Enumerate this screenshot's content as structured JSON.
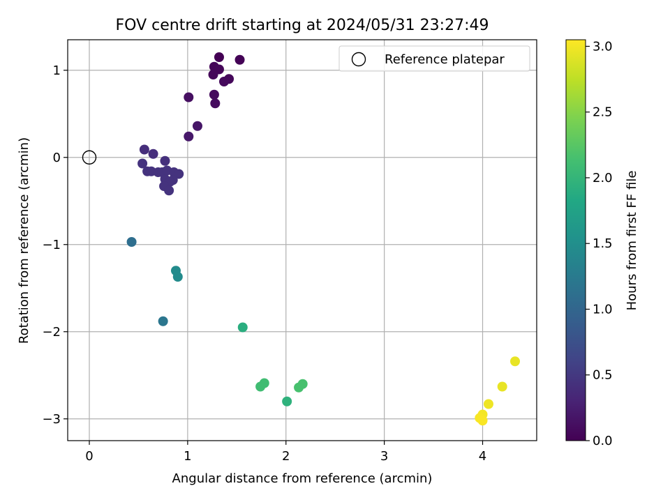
{
  "chart_data": {
    "type": "scatter",
    "title": "FOV centre drift starting at 2024/05/31 23:27:49",
    "xlabel": "Angular distance from reference (arcmin)",
    "ylabel": "Rotation from reference (arcmin)",
    "xlim": [
      -0.22,
      4.55
    ],
    "ylim": [
      -3.25,
      1.35
    ],
    "xticks": [
      0,
      1,
      2,
      3,
      4
    ],
    "yticks": [
      -3,
      -2,
      -1,
      0,
      1
    ],
    "grid": true,
    "legend": {
      "position": "upper right",
      "entries": [
        "Reference platepar"
      ]
    },
    "reference_point": {
      "x": 0,
      "y": 0
    },
    "colorbar": {
      "label": "Hours from first FF file",
      "colormap": "viridis",
      "range": [
        0.0,
        3.05
      ],
      "ticks": [
        "0.0",
        "0.5",
        "1.0",
        "1.5",
        "2.0",
        "2.5",
        "3.0"
      ]
    },
    "points": [
      {
        "x": 1.32,
        "y": 1.15,
        "c": 0.0
      },
      {
        "x": 1.53,
        "y": 1.12,
        "c": 0.02
      },
      {
        "x": 1.27,
        "y": 1.04,
        "c": 0.03
      },
      {
        "x": 1.32,
        "y": 1.01,
        "c": 0.04
      },
      {
        "x": 1.26,
        "y": 0.95,
        "c": 0.05
      },
      {
        "x": 1.42,
        "y": 0.9,
        "c": 0.06
      },
      {
        "x": 1.37,
        "y": 0.87,
        "c": 0.07
      },
      {
        "x": 1.27,
        "y": 0.72,
        "c": 0.08
      },
      {
        "x": 1.28,
        "y": 0.62,
        "c": 0.09
      },
      {
        "x": 1.01,
        "y": 0.69,
        "c": 0.12
      },
      {
        "x": 1.1,
        "y": 0.36,
        "c": 0.18
      },
      {
        "x": 1.01,
        "y": 0.24,
        "c": 0.2
      },
      {
        "x": 0.56,
        "y": 0.09,
        "c": 0.4
      },
      {
        "x": 0.65,
        "y": 0.04,
        "c": 0.4
      },
      {
        "x": 0.54,
        "y": -0.07,
        "c": 0.45
      },
      {
        "x": 0.77,
        "y": -0.04,
        "c": 0.42
      },
      {
        "x": 0.59,
        "y": -0.16,
        "c": 0.45
      },
      {
        "x": 0.63,
        "y": -0.16,
        "c": 0.45
      },
      {
        "x": 0.7,
        "y": -0.17,
        "c": 0.45
      },
      {
        "x": 0.74,
        "y": -0.17,
        "c": 0.45
      },
      {
        "x": 0.79,
        "y": -0.15,
        "c": 0.45
      },
      {
        "x": 0.86,
        "y": -0.17,
        "c": 0.45
      },
      {
        "x": 0.91,
        "y": -0.19,
        "c": 0.45
      },
      {
        "x": 0.77,
        "y": -0.25,
        "c": 0.45
      },
      {
        "x": 0.85,
        "y": -0.26,
        "c": 0.45
      },
      {
        "x": 0.82,
        "y": -0.28,
        "c": 0.45
      },
      {
        "x": 0.76,
        "y": -0.33,
        "c": 0.45
      },
      {
        "x": 0.81,
        "y": -0.38,
        "c": 0.45
      },
      {
        "x": 0.43,
        "y": -0.97,
        "c": 1.1
      },
      {
        "x": 0.88,
        "y": -1.3,
        "c": 1.45
      },
      {
        "x": 0.9,
        "y": -1.37,
        "c": 1.45
      },
      {
        "x": 0.75,
        "y": -1.88,
        "c": 1.2
      },
      {
        "x": 1.56,
        "y": -1.95,
        "c": 1.9
      },
      {
        "x": 1.74,
        "y": -2.63,
        "c": 2.1
      },
      {
        "x": 1.78,
        "y": -2.59,
        "c": 2.1
      },
      {
        "x": 2.13,
        "y": -2.64,
        "c": 2.15
      },
      {
        "x": 2.17,
        "y": -2.6,
        "c": 2.15
      },
      {
        "x": 2.01,
        "y": -2.8,
        "c": 1.95
      },
      {
        "x": 4.33,
        "y": -2.34,
        "c": 2.95
      },
      {
        "x": 4.2,
        "y": -2.63,
        "c": 2.95
      },
      {
        "x": 4.06,
        "y": -2.83,
        "c": 2.98
      },
      {
        "x": 4.0,
        "y": -2.95,
        "c": 3.0
      },
      {
        "x": 3.97,
        "y": -2.99,
        "c": 3.02
      },
      {
        "x": 4.0,
        "y": -3.02,
        "c": 3.03
      }
    ]
  }
}
